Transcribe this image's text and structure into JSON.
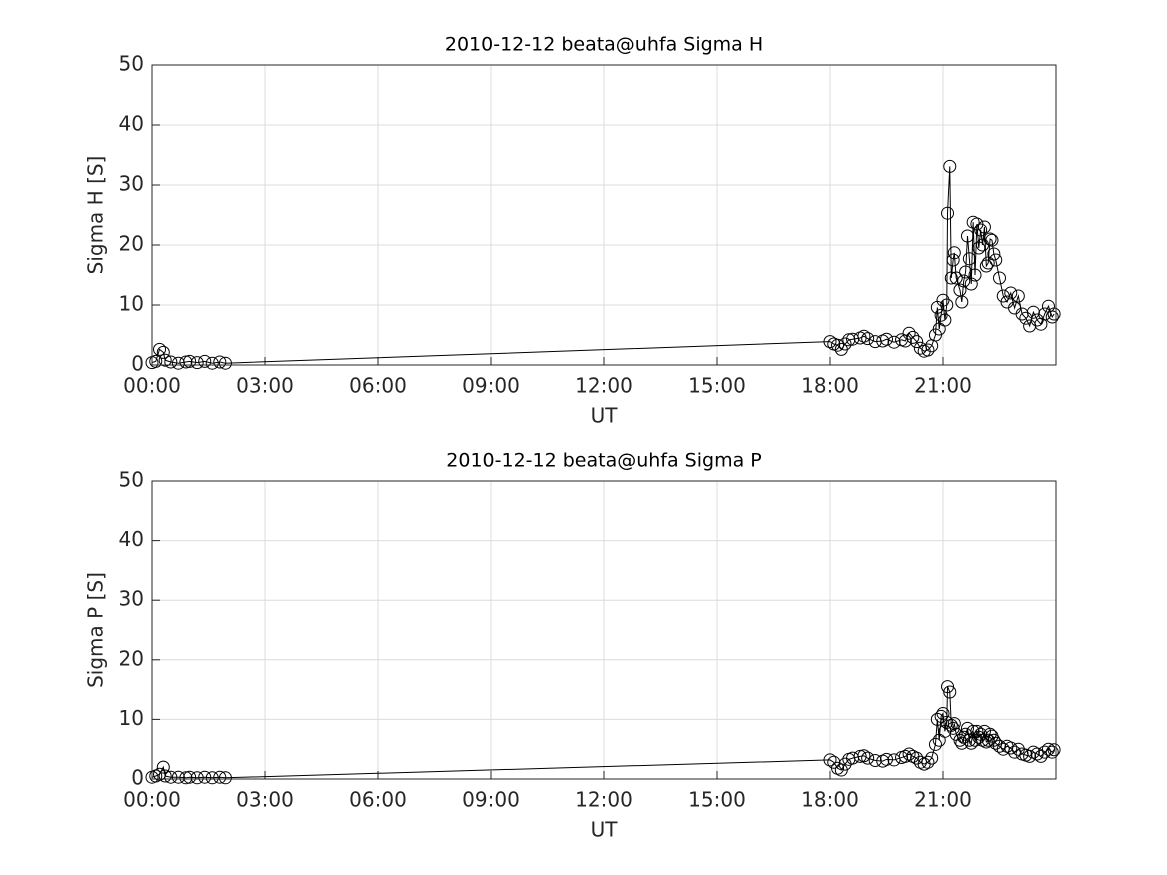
{
  "chart_data": [
    {
      "type": "line",
      "title": "2010-12-12  beata@uhfa Sigma H",
      "xlabel": "UT",
      "ylabel": "Sigma H [S]",
      "color": "#000000",
      "marker": "circle",
      "grid": true,
      "xlim": [
        0,
        24
      ],
      "ylim": [
        0,
        50
      ],
      "xticks": [
        {
          "value": 0,
          "label": "00:00"
        },
        {
          "value": 3,
          "label": "03:00"
        },
        {
          "value": 6,
          "label": "06:00"
        },
        {
          "value": 9,
          "label": "09:00"
        },
        {
          "value": 12,
          "label": "12:00"
        },
        {
          "value": 15,
          "label": "15:00"
        },
        {
          "value": 18,
          "label": "18:00"
        },
        {
          "value": 21,
          "label": "21:00"
        }
      ],
      "yticks": [
        0,
        10,
        20,
        30,
        40,
        50
      ],
      "x": [
        0,
        0.1,
        0.2,
        0.3,
        0.35,
        0.5,
        0.7,
        0.9,
        1.0,
        1.2,
        1.4,
        1.6,
        1.8,
        1.95,
        18.0,
        18.1,
        18.2,
        18.3,
        18.4,
        18.5,
        18.6,
        18.8,
        18.9,
        19.0,
        19.2,
        19.4,
        19.5,
        19.7,
        19.9,
        20.0,
        20.1,
        20.2,
        20.3,
        20.4,
        20.5,
        20.6,
        20.7,
        20.8,
        20.85,
        20.9,
        20.95,
        21.0,
        21.05,
        21.1,
        21.12,
        21.18,
        21.22,
        21.27,
        21.3,
        21.35,
        21.45,
        21.5,
        21.55,
        21.6,
        21.65,
        21.7,
        21.75,
        21.8,
        21.85,
        21.9,
        21.95,
        22.0,
        22.05,
        22.1,
        22.15,
        22.2,
        22.25,
        22.3,
        22.35,
        22.4,
        22.5,
        22.6,
        22.7,
        22.8,
        22.9,
        23.0,
        23.1,
        23.2,
        23.3,
        23.4,
        23.5,
        23.6,
        23.7,
        23.8,
        23.9,
        23.95
      ],
      "values": [
        0.4,
        0.6,
        2.6,
        2.1,
        0.8,
        0.5,
        0.3,
        0.5,
        0.6,
        0.4,
        0.6,
        0.3,
        0.5,
        0.3,
        3.9,
        3.5,
        3.3,
        2.6,
        3.5,
        4.2,
        4.3,
        4.5,
        4.8,
        4.4,
        3.9,
        4.0,
        4.3,
        3.8,
        4.2,
        4.0,
        5.3,
        4.6,
        3.9,
        2.8,
        2.3,
        2.5,
        3.2,
        5.0,
        9.6,
        6.0,
        8.3,
        10.8,
        7.5,
        10.0,
        25.3,
        33.1,
        14.5,
        17.5,
        18.7,
        14.5,
        12.5,
        10.5,
        14.0,
        15.5,
        21.5,
        17.7,
        13.5,
        23.8,
        15.0,
        23.5,
        19.5,
        22.5,
        20.0,
        23.0,
        16.5,
        17.0,
        21.0,
        20.8,
        18.5,
        17.5,
        14.5,
        11.5,
        10.5,
        12.0,
        9.5,
        11.5,
        8.5,
        7.8,
        6.5,
        8.8,
        7.5,
        6.8,
        8.5,
        9.8,
        8.0,
        8.5
      ]
    },
    {
      "type": "line",
      "title": "2010-12-12  beata@uhfa Sigma P",
      "xlabel": "UT",
      "ylabel": "Sigma P [S]",
      "color": "#000000",
      "marker": "circle",
      "grid": true,
      "xlim": [
        0,
        24
      ],
      "ylim": [
        0,
        50
      ],
      "xticks": [
        {
          "value": 0,
          "label": "00:00"
        },
        {
          "value": 3,
          "label": "03:00"
        },
        {
          "value": 6,
          "label": "06:00"
        },
        {
          "value": 9,
          "label": "09:00"
        },
        {
          "value": 12,
          "label": "12:00"
        },
        {
          "value": 15,
          "label": "15:00"
        },
        {
          "value": 18,
          "label": "18:00"
        },
        {
          "value": 21,
          "label": "21:00"
        }
      ],
      "yticks": [
        0,
        10,
        20,
        30,
        40,
        50
      ],
      "x": [
        0,
        0.1,
        0.2,
        0.3,
        0.35,
        0.5,
        0.7,
        0.9,
        1.0,
        1.2,
        1.4,
        1.6,
        1.8,
        1.95,
        18.0,
        18.1,
        18.2,
        18.3,
        18.4,
        18.5,
        18.6,
        18.8,
        18.9,
        19.0,
        19.2,
        19.4,
        19.5,
        19.7,
        19.9,
        20.0,
        20.1,
        20.2,
        20.3,
        20.4,
        20.5,
        20.6,
        20.7,
        20.8,
        20.85,
        20.9,
        20.95,
        21.0,
        21.05,
        21.1,
        21.12,
        21.18,
        21.22,
        21.27,
        21.3,
        21.35,
        21.45,
        21.5,
        21.55,
        21.6,
        21.65,
        21.7,
        21.75,
        21.8,
        21.85,
        21.9,
        21.95,
        22.0,
        22.05,
        22.1,
        22.15,
        22.2,
        22.25,
        22.3,
        22.35,
        22.4,
        22.5,
        22.6,
        22.7,
        22.8,
        22.9,
        23.0,
        23.1,
        23.2,
        23.3,
        23.4,
        23.5,
        23.6,
        23.7,
        23.8,
        23.9,
        23.95
      ],
      "values": [
        0.3,
        0.5,
        0.8,
        2.0,
        0.5,
        0.3,
        0.3,
        0.2,
        0.3,
        0.2,
        0.3,
        0.2,
        0.3,
        0.2,
        3.2,
        2.8,
        1.8,
        1.5,
        2.5,
        3.3,
        3.5,
        3.8,
        3.9,
        3.5,
        3.1,
        3.0,
        3.3,
        3.2,
        3.6,
        3.8,
        4.2,
        3.8,
        3.5,
        2.8,
        2.5,
        2.8,
        3.5,
        5.8,
        10.0,
        6.5,
        10.5,
        11.0,
        8.0,
        9.5,
        15.5,
        14.6,
        9.0,
        8.5,
        9.3,
        7.5,
        6.5,
        6.0,
        7.0,
        7.5,
        8.5,
        6.5,
        6.0,
        8.0,
        6.5,
        8.0,
        7.0,
        7.5,
        6.5,
        8.0,
        6.2,
        6.5,
        7.5,
        7.2,
        6.5,
        6.0,
        5.5,
        5.0,
        5.5,
        5.2,
        4.5,
        5.0,
        4.2,
        4.0,
        3.8,
        4.5,
        4.2,
        3.8,
        4.5,
        5.0,
        4.5,
        4.9
      ]
    }
  ]
}
